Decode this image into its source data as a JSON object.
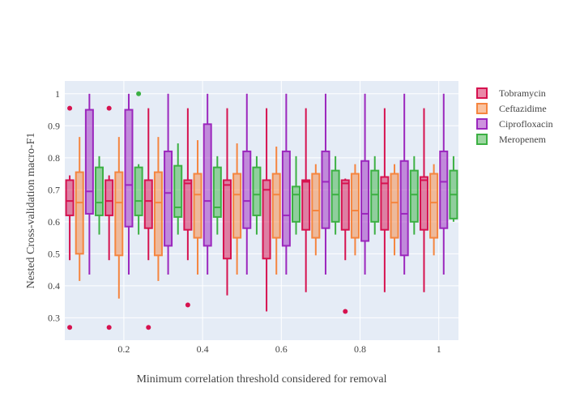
{
  "chart_data": {
    "type": "box",
    "title": "",
    "xlabel": "Minimum correlation threshold considered for removal",
    "ylabel": "Nested Cross-validation macro-F1",
    "xlim": [
      0.05,
      1.05
    ],
    "ylim": [
      0.23,
      1.04
    ],
    "x_ticks": [
      0.2,
      0.4,
      0.6,
      0.8,
      1
    ],
    "x_tick_labels": [
      "0.2",
      "0.4",
      "0.6",
      "0.8",
      "1"
    ],
    "y_ticks": [
      0.3,
      0.4,
      0.5,
      0.6,
      0.7,
      0.8,
      0.9,
      1
    ],
    "y_tick_labels": [
      "0.3",
      "0.4",
      "0.5",
      "0.6",
      "0.7",
      "0.8",
      "0.9",
      "1"
    ],
    "grid": true,
    "legend_position": "top-right",
    "groups_x": [
      0.1,
      0.2,
      0.3,
      0.4,
      0.5,
      0.6,
      0.7,
      0.8,
      0.9,
      1.0
    ],
    "series": [
      {
        "name": "Tobramycin",
        "color": "#d6124f",
        "boxes": [
          {
            "min": 0.48,
            "q1": 0.62,
            "median": 0.665,
            "q3": 0.73,
            "max": 0.745,
            "outliers": [
              0.955,
              0.27
            ]
          },
          {
            "min": 0.48,
            "q1": 0.62,
            "median": 0.665,
            "q3": 0.73,
            "max": 0.745,
            "outliers": [
              0.955,
              0.27
            ]
          },
          {
            "min": 0.48,
            "q1": 0.58,
            "median": 0.665,
            "q3": 0.73,
            "max": 0.955,
            "outliers": [
              0.27
            ]
          },
          {
            "min": 0.48,
            "q1": 0.575,
            "median": 0.72,
            "q3": 0.73,
            "max": 0.955,
            "outliers": [
              0.34
            ]
          },
          {
            "min": 0.37,
            "q1": 0.485,
            "median": 0.715,
            "q3": 0.73,
            "max": 0.955,
            "outliers": []
          },
          {
            "min": 0.32,
            "q1": 0.485,
            "median": 0.7,
            "q3": 0.73,
            "max": 0.955,
            "outliers": []
          },
          {
            "min": 0.38,
            "q1": 0.575,
            "median": 0.725,
            "q3": 0.73,
            "max": 0.955,
            "outliers": []
          },
          {
            "min": 0.48,
            "q1": 0.575,
            "median": 0.72,
            "q3": 0.73,
            "max": 0.735,
            "outliers": [
              0.32
            ]
          },
          {
            "min": 0.38,
            "q1": 0.575,
            "median": 0.72,
            "q3": 0.74,
            "max": 0.955,
            "outliers": []
          },
          {
            "min": 0.38,
            "q1": 0.575,
            "median": 0.73,
            "q3": 0.74,
            "max": 0.955,
            "outliers": []
          }
        ]
      },
      {
        "name": "Ceftazidime",
        "color": "#f5853f",
        "boxes": [
          {
            "min": 0.415,
            "q1": 0.5,
            "median": 0.66,
            "q3": 0.755,
            "max": 0.865,
            "outliers": []
          },
          {
            "min": 0.36,
            "q1": 0.495,
            "median": 0.66,
            "q3": 0.755,
            "max": 0.865,
            "outliers": []
          },
          {
            "min": 0.415,
            "q1": 0.495,
            "median": 0.66,
            "q3": 0.755,
            "max": 0.865,
            "outliers": []
          },
          {
            "min": 0.435,
            "q1": 0.55,
            "median": 0.685,
            "q3": 0.75,
            "max": 0.855,
            "outliers": []
          },
          {
            "min": 0.435,
            "q1": 0.55,
            "median": 0.685,
            "q3": 0.75,
            "max": 0.845,
            "outliers": []
          },
          {
            "min": 0.435,
            "q1": 0.55,
            "median": 0.685,
            "q3": 0.75,
            "max": 0.835,
            "outliers": []
          },
          {
            "min": 0.495,
            "q1": 0.55,
            "median": 0.635,
            "q3": 0.75,
            "max": 0.78,
            "outliers": []
          },
          {
            "min": 0.495,
            "q1": 0.55,
            "median": 0.635,
            "q3": 0.75,
            "max": 0.78,
            "outliers": []
          },
          {
            "min": 0.495,
            "q1": 0.55,
            "median": 0.66,
            "q3": 0.75,
            "max": 0.78,
            "outliers": []
          },
          {
            "min": 0.495,
            "q1": 0.55,
            "median": 0.66,
            "q3": 0.75,
            "max": 0.78,
            "outliers": []
          }
        ]
      },
      {
        "name": "Ciprofloxacin",
        "color": "#9b27bd",
        "boxes": [
          {
            "min": 0.435,
            "q1": 0.625,
            "median": 0.695,
            "q3": 0.95,
            "max": 1.0,
            "outliers": []
          },
          {
            "min": 0.435,
            "q1": 0.585,
            "median": 0.715,
            "q3": 0.95,
            "max": 1.0,
            "outliers": []
          },
          {
            "min": 0.435,
            "q1": 0.525,
            "median": 0.69,
            "q3": 0.82,
            "max": 1.0,
            "outliers": []
          },
          {
            "min": 0.435,
            "q1": 0.525,
            "median": 0.665,
            "q3": 0.905,
            "max": 1.0,
            "outliers": []
          },
          {
            "min": 0.435,
            "q1": 0.58,
            "median": 0.665,
            "q3": 0.82,
            "max": 1.0,
            "outliers": []
          },
          {
            "min": 0.435,
            "q1": 0.525,
            "median": 0.62,
            "q3": 0.82,
            "max": 1.0,
            "outliers": []
          },
          {
            "min": 0.435,
            "q1": 0.58,
            "median": 0.725,
            "q3": 0.82,
            "max": 1.0,
            "outliers": []
          },
          {
            "min": 0.435,
            "q1": 0.54,
            "median": 0.625,
            "q3": 0.79,
            "max": 1.0,
            "outliers": []
          },
          {
            "min": 0.435,
            "q1": 0.495,
            "median": 0.625,
            "q3": 0.79,
            "max": 1.0,
            "outliers": []
          },
          {
            "min": 0.435,
            "q1": 0.58,
            "median": 0.725,
            "q3": 0.82,
            "max": 1.0,
            "outliers": []
          }
        ]
      },
      {
        "name": "Meropenem",
        "color": "#3cb043",
        "boxes": [
          {
            "min": 0.56,
            "q1": 0.62,
            "median": 0.66,
            "q3": 0.77,
            "max": 0.805,
            "outliers": []
          },
          {
            "min": 0.56,
            "q1": 0.62,
            "median": 0.665,
            "q3": 0.77,
            "max": 0.78,
            "outliers": [
              1.0
            ]
          },
          {
            "min": 0.56,
            "q1": 0.615,
            "median": 0.645,
            "q3": 0.775,
            "max": 0.845,
            "outliers": []
          },
          {
            "min": 0.56,
            "q1": 0.615,
            "median": 0.645,
            "q3": 0.77,
            "max": 0.805,
            "outliers": []
          },
          {
            "min": 0.56,
            "q1": 0.62,
            "median": 0.685,
            "q3": 0.77,
            "max": 0.805,
            "outliers": []
          },
          {
            "min": 0.56,
            "q1": 0.6,
            "median": 0.685,
            "q3": 0.71,
            "max": 0.805,
            "outliers": []
          },
          {
            "min": 0.56,
            "q1": 0.6,
            "median": 0.685,
            "q3": 0.76,
            "max": 0.805,
            "outliers": []
          },
          {
            "min": 0.56,
            "q1": 0.6,
            "median": 0.685,
            "q3": 0.76,
            "max": 0.805,
            "outliers": []
          },
          {
            "min": 0.56,
            "q1": 0.6,
            "median": 0.685,
            "q3": 0.76,
            "max": 0.805,
            "outliers": []
          },
          {
            "min": 0.6,
            "q1": 0.61,
            "median": 0.685,
            "q3": 0.76,
            "max": 0.805,
            "outliers": []
          }
        ]
      }
    ]
  }
}
